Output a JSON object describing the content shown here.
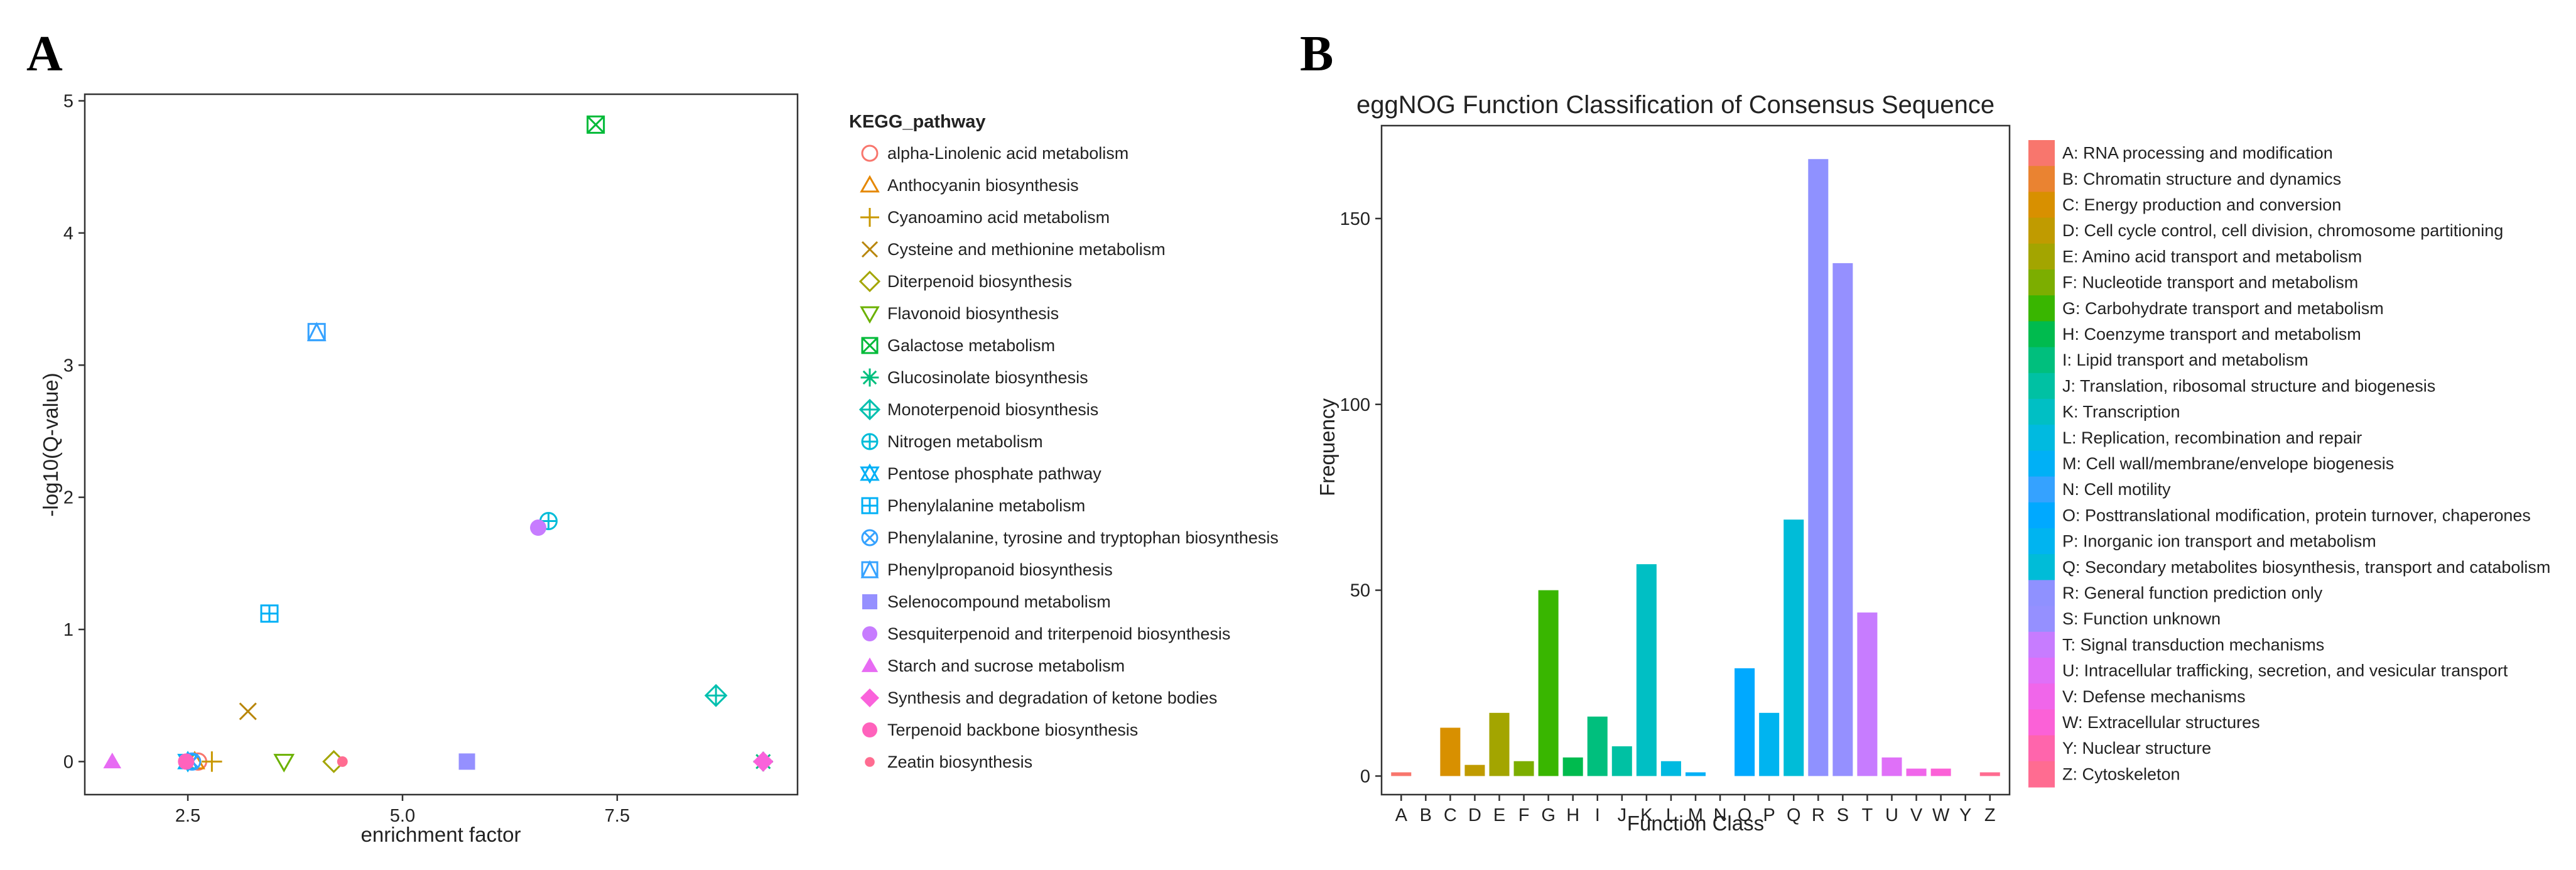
{
  "panelA": {
    "label": "A",
    "chart_data": {
      "type": "scatter",
      "xlabel": "enrichment factor",
      "ylabel": "-log10(Q-value)",
      "xlim": [
        1.3,
        9.6
      ],
      "ylim": [
        -0.25,
        5.05
      ],
      "xticks": [
        2.5,
        5.0,
        7.5
      ],
      "xtick_labels": [
        "2.5",
        "5.0",
        "7.5"
      ],
      "yticks": [
        0,
        1,
        2,
        3,
        4,
        5
      ],
      "ytick_labels": [
        "0",
        "1",
        "2",
        "3",
        "4",
        "5"
      ],
      "legend_title": "KEGG_pathway",
      "series": [
        {
          "name": "alpha-Linolenic acid metabolism",
          "color": "#F8766D",
          "shape": "circle-open",
          "points": [
            [
              2.62,
              0.0
            ]
          ]
        },
        {
          "name": "Anthocyanin biosynthesis",
          "color": "#E58700",
          "shape": "triangle-open",
          "points": [
            [
              2.58,
              0.0
            ]
          ]
        },
        {
          "name": "Cyanoamino acid metabolism",
          "color": "#C99800",
          "shape": "plus",
          "points": [
            [
              2.78,
              0.0
            ]
          ]
        },
        {
          "name": "Cysteine and methionine metabolism",
          "color": "#B8860B",
          "shape": "cross",
          "points": [
            [
              3.2,
              0.38
            ]
          ]
        },
        {
          "name": "Diterpenoid biosynthesis",
          "color": "#A3A500",
          "shape": "diamond-open",
          "points": [
            [
              4.2,
              0.0
            ]
          ]
        },
        {
          "name": "Flavonoid biosynthesis",
          "color": "#6BB100",
          "shape": "triangle-down-open",
          "points": [
            [
              3.62,
              0.0
            ]
          ]
        },
        {
          "name": "Galactose metabolism",
          "color": "#00BA38",
          "shape": "square-x",
          "points": [
            [
              7.25,
              4.82
            ]
          ]
        },
        {
          "name": "Glucosinolate biosynthesis",
          "color": "#00BF7D",
          "shape": "asterisk",
          "points": [
            [
              9.2,
              0.0
            ]
          ]
        },
        {
          "name": "Monoterpenoid biosynthesis",
          "color": "#00C0AF",
          "shape": "diamond-plus",
          "points": [
            [
              8.65,
              0.5
            ]
          ]
        },
        {
          "name": "Nitrogen metabolism",
          "color": "#00BCD8",
          "shape": "circle-plus",
          "points": [
            [
              6.7,
              1.82
            ]
          ]
        },
        {
          "name": "Pentose phosphate pathway",
          "color": "#00B0F6",
          "shape": "star-david",
          "points": [
            [
              2.5,
              0.0
            ]
          ]
        },
        {
          "name": "Phenylalanine metabolism",
          "color": "#00B0F6",
          "shape": "square-plus",
          "points": [
            [
              3.45,
              1.12
            ]
          ]
        },
        {
          "name": "Phenylalanine, tyrosine and tryptophan biosynthesis",
          "color": "#35A2FF",
          "shape": "circle-x",
          "points": [
            [
              2.55,
              0.0
            ]
          ]
        },
        {
          "name": "Phenylpropanoid biosynthesis",
          "color": "#35A2FF",
          "shape": "square-triangle",
          "points": [
            [
              4.0,
              3.25
            ]
          ]
        },
        {
          "name": "Selenocompound metabolism",
          "color": "#9590FF",
          "shape": "square",
          "points": [
            [
              5.75,
              0.0
            ]
          ]
        },
        {
          "name": "Sesquiterpenoid and triterpenoid biosynthesis",
          "color": "#C77CFF",
          "shape": "circle",
          "points": [
            [
              6.58,
              1.77
            ]
          ]
        },
        {
          "name": "Starch and sucrose metabolism",
          "color": "#E76BF3",
          "shape": "triangle",
          "points": [
            [
              1.62,
              0.0
            ]
          ]
        },
        {
          "name": "Synthesis and degradation of ketone bodies",
          "color": "#FA62DB",
          "shape": "diamond",
          "points": [
            [
              9.2,
              0.0
            ]
          ]
        },
        {
          "name": "Terpenoid backbone biosynthesis",
          "color": "#FF62BC",
          "shape": "circle",
          "points": [
            [
              2.48,
              0.0
            ]
          ]
        },
        {
          "name": "Zeatin biosynthesis",
          "color": "#FF6C91",
          "shape": "dot",
          "points": [
            [
              4.3,
              0.0
            ]
          ]
        }
      ]
    }
  },
  "panelB": {
    "label": "B",
    "chart_data": {
      "type": "bar",
      "title": "eggNOG Function Classification of Consensus Sequence",
      "xlabel": "Function Class",
      "ylabel": "Frequency",
      "ylim": [
        -5,
        175
      ],
      "yticks": [
        0,
        50,
        100,
        150
      ],
      "ytick_labels": [
        "0",
        "50",
        "100",
        "150"
      ],
      "categories": [
        "A",
        "B",
        "C",
        "D",
        "E",
        "F",
        "G",
        "H",
        "I",
        "J",
        "K",
        "L",
        "M",
        "N",
        "O",
        "P",
        "Q",
        "R",
        "S",
        "T",
        "U",
        "V",
        "W",
        "Y",
        "Z"
      ],
      "values": [
        1,
        0,
        13,
        3,
        17,
        4,
        50,
        5,
        16,
        8,
        57,
        4,
        1,
        0,
        29,
        17,
        69,
        166,
        138,
        44,
        5,
        2,
        2,
        0,
        1
      ],
      "colors": [
        "#F8766D",
        "#EA8331",
        "#D89000",
        "#C09B00",
        "#A3A500",
        "#7CAE00",
        "#39B600",
        "#00BB4E",
        "#00BF7D",
        "#00C1A3",
        "#00BFC4",
        "#00BAE0",
        "#00B0F6",
        "#35A2FF",
        "#00A9FF",
        "#00B4F0",
        "#00BCD8",
        "#8F91FF",
        "#9590FF",
        "#C77CFF",
        "#DF70F8",
        "#F066EA",
        "#FB61D7",
        "#FF65AC",
        "#FF6C91"
      ],
      "legend": [
        "A: RNA processing and modification",
        "B: Chromatin structure and dynamics",
        "C: Energy production and conversion",
        "D: Cell cycle control, cell division, chromosome partitioning",
        "E: Amino acid transport and metabolism",
        "F: Nucleotide transport and metabolism",
        "G: Carbohydrate transport and metabolism",
        "H: Coenzyme transport and metabolism",
        "I: Lipid transport and metabolism",
        "J: Translation, ribosomal structure and biogenesis",
        "K: Transcription",
        "L: Replication, recombination and repair",
        "M: Cell wall/membrane/envelope biogenesis",
        "N: Cell motility",
        "O: Posttranslational modification, protein turnover, chaperones",
        "P: Inorganic ion transport and metabolism",
        "Q: Secondary metabolites biosynthesis, transport and catabolism",
        "R: General function prediction only",
        "S: Function unknown",
        "T: Signal transduction mechanisms",
        "U: Intracellular trafficking, secretion, and vesicular transport",
        "V: Defense mechanisms",
        "W: Extracellular structures",
        "Y: Nuclear structure",
        "Z: Cytoskeleton"
      ]
    }
  }
}
